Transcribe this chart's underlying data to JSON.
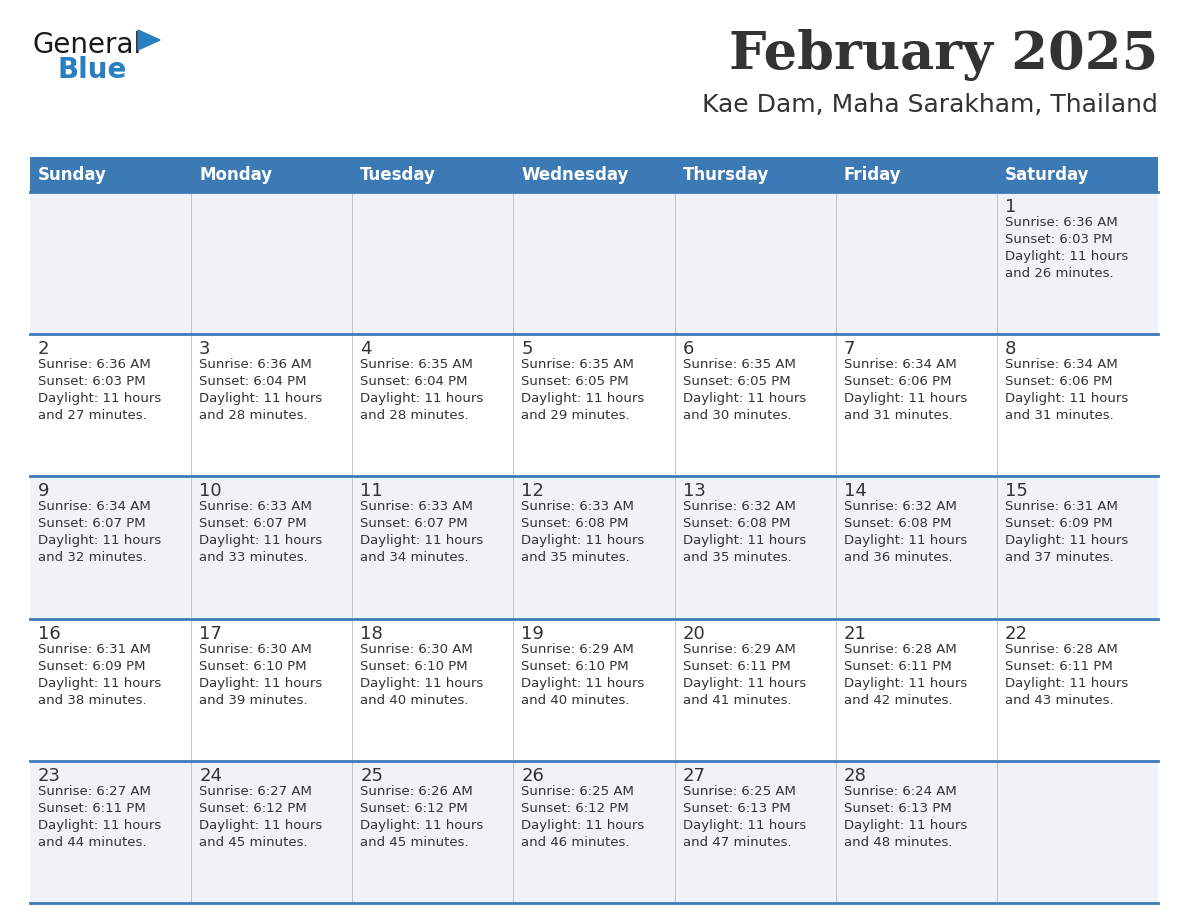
{
  "title": "February 2025",
  "subtitle": "Kae Dam, Maha Sarakham, Thailand",
  "header_bg_color": "#3c7ab5",
  "header_text_color": "#ffffff",
  "day_names": [
    "Sunday",
    "Monday",
    "Tuesday",
    "Wednesday",
    "Thursday",
    "Friday",
    "Saturday"
  ],
  "row_bg_even": "#eff3f7",
  "row_bg_odd": "#ffffff",
  "divider_color": "#3c7ab5",
  "cell_divider_color": "#cccccc",
  "text_color": "#333333",
  "days": [
    {
      "day": 1,
      "col": 6,
      "row": 0,
      "sunrise": "6:36 AM",
      "sunset": "6:03 PM",
      "daylight_hours": 11,
      "daylight_minutes": 26
    },
    {
      "day": 2,
      "col": 0,
      "row": 1,
      "sunrise": "6:36 AM",
      "sunset": "6:03 PM",
      "daylight_hours": 11,
      "daylight_minutes": 27
    },
    {
      "day": 3,
      "col": 1,
      "row": 1,
      "sunrise": "6:36 AM",
      "sunset": "6:04 PM",
      "daylight_hours": 11,
      "daylight_minutes": 28
    },
    {
      "day": 4,
      "col": 2,
      "row": 1,
      "sunrise": "6:35 AM",
      "sunset": "6:04 PM",
      "daylight_hours": 11,
      "daylight_minutes": 28
    },
    {
      "day": 5,
      "col": 3,
      "row": 1,
      "sunrise": "6:35 AM",
      "sunset": "6:05 PM",
      "daylight_hours": 11,
      "daylight_minutes": 29
    },
    {
      "day": 6,
      "col": 4,
      "row": 1,
      "sunrise": "6:35 AM",
      "sunset": "6:05 PM",
      "daylight_hours": 11,
      "daylight_minutes": 30
    },
    {
      "day": 7,
      "col": 5,
      "row": 1,
      "sunrise": "6:34 AM",
      "sunset": "6:06 PM",
      "daylight_hours": 11,
      "daylight_minutes": 31
    },
    {
      "day": 8,
      "col": 6,
      "row": 1,
      "sunrise": "6:34 AM",
      "sunset": "6:06 PM",
      "daylight_hours": 11,
      "daylight_minutes": 31
    },
    {
      "day": 9,
      "col": 0,
      "row": 2,
      "sunrise": "6:34 AM",
      "sunset": "6:07 PM",
      "daylight_hours": 11,
      "daylight_minutes": 32
    },
    {
      "day": 10,
      "col": 1,
      "row": 2,
      "sunrise": "6:33 AM",
      "sunset": "6:07 PM",
      "daylight_hours": 11,
      "daylight_minutes": 33
    },
    {
      "day": 11,
      "col": 2,
      "row": 2,
      "sunrise": "6:33 AM",
      "sunset": "6:07 PM",
      "daylight_hours": 11,
      "daylight_minutes": 34
    },
    {
      "day": 12,
      "col": 3,
      "row": 2,
      "sunrise": "6:33 AM",
      "sunset": "6:08 PM",
      "daylight_hours": 11,
      "daylight_minutes": 35
    },
    {
      "day": 13,
      "col": 4,
      "row": 2,
      "sunrise": "6:32 AM",
      "sunset": "6:08 PM",
      "daylight_hours": 11,
      "daylight_minutes": 35
    },
    {
      "day": 14,
      "col": 5,
      "row": 2,
      "sunrise": "6:32 AM",
      "sunset": "6:08 PM",
      "daylight_hours": 11,
      "daylight_minutes": 36
    },
    {
      "day": 15,
      "col": 6,
      "row": 2,
      "sunrise": "6:31 AM",
      "sunset": "6:09 PM",
      "daylight_hours": 11,
      "daylight_minutes": 37
    },
    {
      "day": 16,
      "col": 0,
      "row": 3,
      "sunrise": "6:31 AM",
      "sunset": "6:09 PM",
      "daylight_hours": 11,
      "daylight_minutes": 38
    },
    {
      "day": 17,
      "col": 1,
      "row": 3,
      "sunrise": "6:30 AM",
      "sunset": "6:10 PM",
      "daylight_hours": 11,
      "daylight_minutes": 39
    },
    {
      "day": 18,
      "col": 2,
      "row": 3,
      "sunrise": "6:30 AM",
      "sunset": "6:10 PM",
      "daylight_hours": 11,
      "daylight_minutes": 40
    },
    {
      "day": 19,
      "col": 3,
      "row": 3,
      "sunrise": "6:29 AM",
      "sunset": "6:10 PM",
      "daylight_hours": 11,
      "daylight_minutes": 40
    },
    {
      "day": 20,
      "col": 4,
      "row": 3,
      "sunrise": "6:29 AM",
      "sunset": "6:11 PM",
      "daylight_hours": 11,
      "daylight_minutes": 41
    },
    {
      "day": 21,
      "col": 5,
      "row": 3,
      "sunrise": "6:28 AM",
      "sunset": "6:11 PM",
      "daylight_hours": 11,
      "daylight_minutes": 42
    },
    {
      "day": 22,
      "col": 6,
      "row": 3,
      "sunrise": "6:28 AM",
      "sunset": "6:11 PM",
      "daylight_hours": 11,
      "daylight_minutes": 43
    },
    {
      "day": 23,
      "col": 0,
      "row": 4,
      "sunrise": "6:27 AM",
      "sunset": "6:11 PM",
      "daylight_hours": 11,
      "daylight_minutes": 44
    },
    {
      "day": 24,
      "col": 1,
      "row": 4,
      "sunrise": "6:27 AM",
      "sunset": "6:12 PM",
      "daylight_hours": 11,
      "daylight_minutes": 45
    },
    {
      "day": 25,
      "col": 2,
      "row": 4,
      "sunrise": "6:26 AM",
      "sunset": "6:12 PM",
      "daylight_hours": 11,
      "daylight_minutes": 45
    },
    {
      "day": 26,
      "col": 3,
      "row": 4,
      "sunrise": "6:25 AM",
      "sunset": "6:12 PM",
      "daylight_hours": 11,
      "daylight_minutes": 46
    },
    {
      "day": 27,
      "col": 4,
      "row": 4,
      "sunrise": "6:25 AM",
      "sunset": "6:13 PM",
      "daylight_hours": 11,
      "daylight_minutes": 47
    },
    {
      "day": 28,
      "col": 5,
      "row": 4,
      "sunrise": "6:24 AM",
      "sunset": "6:13 PM",
      "daylight_hours": 11,
      "daylight_minutes": 48
    }
  ],
  "num_rows": 5,
  "logo_text_general": "General",
  "logo_text_blue": "Blue",
  "logo_color_general": "#1a1a1a",
  "logo_color_blue": "#2a7fc1"
}
